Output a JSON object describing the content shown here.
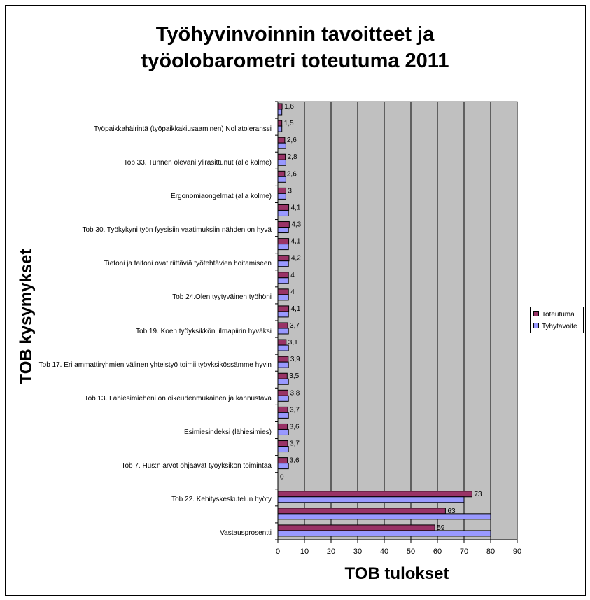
{
  "title": "Työhyvinvoinnin tavoitteet ja\ntyöolobarometri toteutuma 2011",
  "colors": {
    "toteutuma": "#993366",
    "tyhytavoite": "#9999ff",
    "plot_bg": "#c0c0c0"
  },
  "chart_data": {
    "type": "bar",
    "orientation": "horizontal",
    "title": "Työhyvinvoinnin tavoitteet ja työolobarometri toteutuma 2011",
    "xlabel": "TOB tulokset",
    "ylabel": "TOB kysymykset",
    "xlim": [
      0,
      90
    ],
    "xticks": [
      "0",
      "10",
      "20",
      "30",
      "40",
      "50",
      "60",
      "70",
      "80",
      "90"
    ],
    "grid": "vertical",
    "legend": "right",
    "categories": [
      "",
      "Työpaikkahäirintä (työpaikkakiusaaminen) Nollatoleranssi",
      "",
      "Tob 33. Tunnen olevani ylirasittunut (alle kolme)",
      "",
      "Ergonomiaongelmat (alla kolme)",
      "",
      "Tob 30. Työkykyni työn fyysisiin vaatimuksiin nähden on hyvä",
      "",
      "Tietoni ja taitoni ovat riittäviä työtehtävien hoitamiseen",
      "",
      "Tob 24.Olen tyytyväinen työhöni",
      "",
      "Tob 19. Koen työyksikköni ilmapiirin hyväksi",
      "",
      "Tob 17. Eri ammattiryhmien välinen yhteistyö toimii työyksikössämme hyvin",
      "",
      "Tob 13. Lähiesimieheni on oikeudenmukainen ja kannustava",
      "",
      "Esimiesindeksi (lähiesimies)",
      "",
      "Tob 7. Hus:n arvot ohjaavat työyksikön toimintaa",
      "",
      "Tob 22. Kehityskeskutelun hyöty",
      "",
      "Vastausprosentti"
    ],
    "series": [
      {
        "name": "Toteutuma",
        "values": [
          1.6,
          1.5,
          2.6,
          2.8,
          2.6,
          3,
          4.1,
          4.3,
          4.1,
          4.2,
          4,
          4,
          4.1,
          3.7,
          3.1,
          3.9,
          3.5,
          3.8,
          3.7,
          3.6,
          3.7,
          3.6,
          0,
          73,
          63,
          59
        ],
        "labels": [
          "1,6",
          "1,5",
          "2,6",
          "2,8",
          "2,6",
          "3",
          "4,1",
          "4,3",
          "4,1",
          "4,2",
          "4",
          "4",
          "4,1",
          "3,7",
          "3,1",
          "3,9",
          "3,5",
          "3,8",
          "3,7",
          "3,6",
          "3,7",
          "3,6",
          "0",
          "73",
          "63",
          "59"
        ]
      },
      {
        "name": "Tyhytavoite",
        "values": [
          1.5,
          1.5,
          3,
          3,
          3,
          3,
          4,
          4,
          4,
          4,
          4,
          4,
          4,
          4,
          4,
          4,
          4,
          4,
          4,
          4,
          4,
          4,
          0,
          70,
          80,
          80
        ]
      }
    ]
  }
}
